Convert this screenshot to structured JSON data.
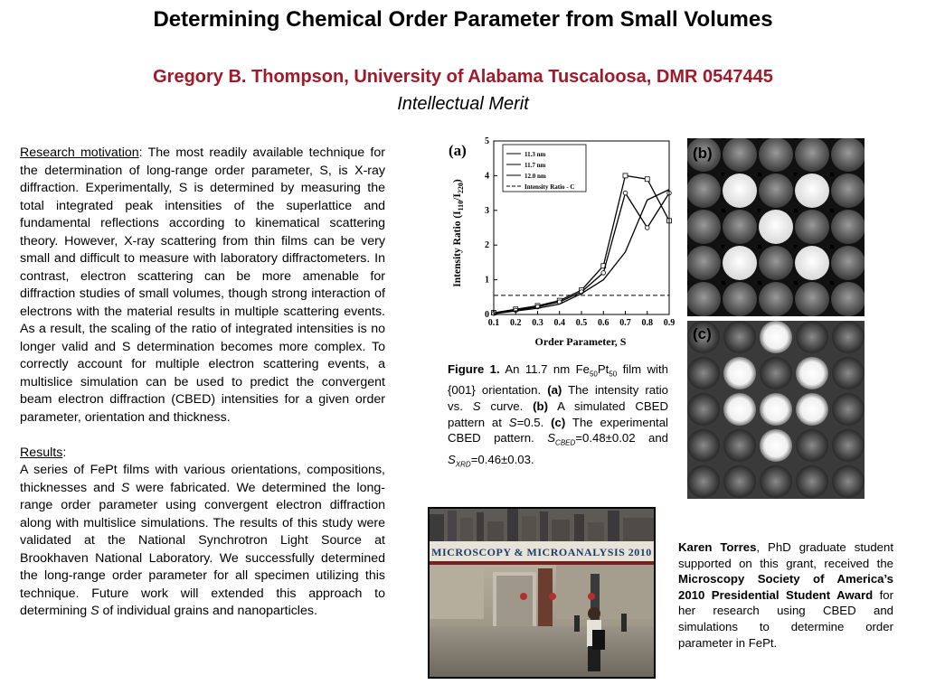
{
  "title": "Determining Chemical Order Parameter from Small Volumes",
  "author": "Gregory B. Thompson, University of Alabama Tuscaloosa, DMR 0547445",
  "subtitle": "Intellectual Merit",
  "motivation": {
    "heading": "Research motivation",
    "text": ": The most readily available technique for the determination of long-range order parameter, S, is X-ray diffraction. Experimentally, S is determined by measuring the total integrated peak intensities of the superlattice and fundamental reflections according to kinematical scattering theory. However, X-ray scattering from thin films can be very small and difficult to measure with laboratory diffractometers. In contrast, electron scattering can be more amenable for diffraction studies of small volumes, though strong interaction of electrons with the material results in multiple scattering events. As a result, the scaling of the ratio of integrated intensities is no longer valid and S determination becomes more complex. To correctly account for multiple electron scattering events, a multislice simulation can be used to predict the convergent beam electron diffraction (CBED) intensities for a given order parameter, orientation and thickness."
  },
  "results": {
    "heading": "Results",
    "colon": ":",
    "text1": "A series of FePt films with various orientations, compositions, thicknesses and ",
    "s1": "S",
    "text2": " were fabricated. We determined the long-range order parameter using convergent electron diffraction along with multislice simulations. The results of this study were validated at the National Synchrotron Light Source at Brookhaven National Laboratory. We successfully determined the long-range order parameter for all specimen utilizing this technique. Future work will extended this approach to determining ",
    "s2": "S",
    "text3": " of individual grains and nanoparticles."
  },
  "panels": {
    "a": "(a)",
    "b": "(b)",
    "c": "(c)"
  },
  "chart_data": {
    "type": "line",
    "xlabel": "Order Parameter, S",
    "ylabel_parts": [
      "Intensity Ratio (I",
      "110",
      "/I",
      "220",
      ")"
    ],
    "xlim": [
      0.1,
      0.9
    ],
    "ylim": [
      0,
      5
    ],
    "x_ticks": [
      "0.1",
      "0.2",
      "0.3",
      "0.4",
      "0.5",
      "0.6",
      "0.7",
      "0.8",
      "0.9"
    ],
    "y_ticks": [
      "0",
      "1",
      "2",
      "3",
      "4",
      "5"
    ],
    "series": [
      {
        "name": "11.3 nm",
        "x": [
          0.1,
          0.2,
          0.3,
          0.4,
          0.5,
          0.6,
          0.7,
          0.8,
          0.9
        ],
        "y": [
          0.05,
          0.15,
          0.25,
          0.4,
          0.7,
          1.4,
          4.0,
          3.9,
          2.7
        ]
      },
      {
        "name": "11.7 nm",
        "x": [
          0.1,
          0.2,
          0.3,
          0.4,
          0.5,
          0.6,
          0.7,
          0.8,
          0.9
        ],
        "y": [
          0.03,
          0.12,
          0.22,
          0.36,
          0.65,
          1.2,
          3.5,
          2.5,
          3.5
        ]
      },
      {
        "name": "12.0 nm",
        "x": [
          0.1,
          0.2,
          0.3,
          0.4,
          0.5,
          0.6,
          0.7,
          0.8,
          0.9
        ],
        "y": [
          0.02,
          0.1,
          0.18,
          0.3,
          0.6,
          1.0,
          1.8,
          3.3,
          3.6
        ]
      },
      {
        "name": "Intensity Ratio - C",
        "x": [
          0.1,
          0.9
        ],
        "y": [
          0.55,
          0.55
        ],
        "style": "dashed"
      }
    ]
  },
  "caption": {
    "fig": "Figure 1.",
    "t1": " An 11.7 nm Fe",
    "sub1": "50",
    "t2": "Pt",
    "sub2": "50",
    "t3": " film with {001} orientation. ",
    "a": "(a)",
    "t4": " The intensity ratio vs. ",
    "s": "S",
    "t5": " curve. ",
    "b": "(b)",
    "t6": " A simulated CBED pattern at ",
    "s2": "S",
    "t7": "=0.5. ",
    "c": "(c)",
    "t8": " The experimental CBED pattern. ",
    "s3": "S",
    "sub3": "CBED",
    "t9": "=0.48±0.02 and ",
    "s4": "S",
    "sub4": "XRD",
    "t10": "=0.46±0.03."
  },
  "photo": {
    "banner": "Microscopy & Microanalysis 2010"
  },
  "award": {
    "name": "Karen Torres",
    "t1": ", PhD graduate student supported on this grant, received the ",
    "award": "Microscopy Society of America’s 2010 Presidential Student Award",
    "t2": " for her research using CBED and simulations to determine order parameter in FePt."
  },
  "colors": {
    "author": "#a01a2a"
  }
}
